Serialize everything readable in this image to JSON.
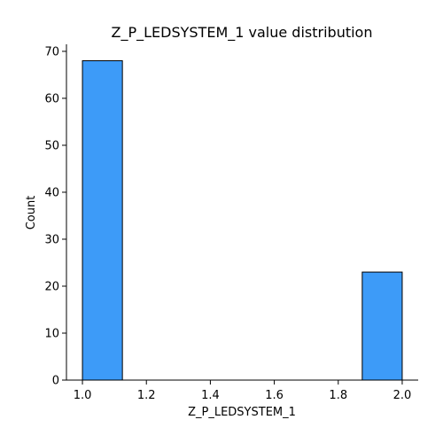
{
  "chart_data": {
    "type": "bar",
    "title": "Z_P_LEDSYSTEM_1 value distribution",
    "xlabel": "Z_P_LEDSYSTEM_1",
    "ylabel": "Count",
    "xlim": [
      0.95,
      2.05
    ],
    "ylim": [
      0,
      71.5
    ],
    "bins": [
      {
        "start": 1.0,
        "end": 1.125,
        "count": 68
      },
      {
        "start": 1.875,
        "end": 2.0,
        "count": 23
      }
    ],
    "xticks": [
      {
        "value": 1.0,
        "label": "1.0"
      },
      {
        "value": 1.2,
        "label": "1.2"
      },
      {
        "value": 1.4,
        "label": "1.4"
      },
      {
        "value": 1.6,
        "label": "1.6"
      },
      {
        "value": 1.8,
        "label": "1.8"
      },
      {
        "value": 2.0,
        "label": "2.0"
      }
    ],
    "yticks": [
      {
        "value": 0,
        "label": "0"
      },
      {
        "value": 10,
        "label": "10"
      },
      {
        "value": 20,
        "label": "20"
      },
      {
        "value": 30,
        "label": "30"
      },
      {
        "value": 40,
        "label": "40"
      },
      {
        "value": 50,
        "label": "50"
      },
      {
        "value": 60,
        "label": "60"
      },
      {
        "value": 70,
        "label": "70"
      }
    ],
    "bar_color": "#3d9bf8",
    "grid": false,
    "legend": "none"
  }
}
